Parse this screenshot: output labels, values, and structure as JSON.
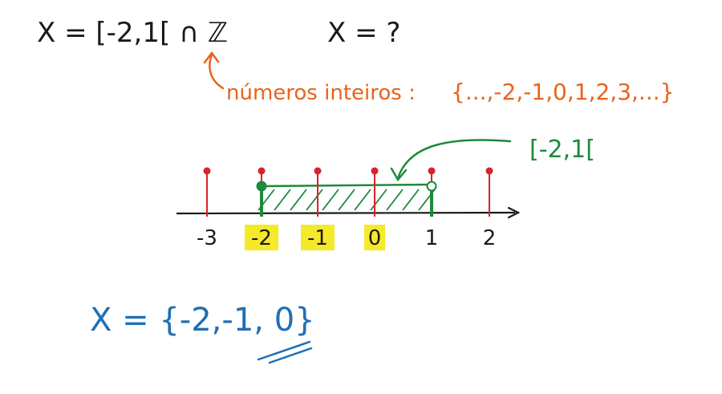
{
  "colors": {
    "ink": "#1a1a1a",
    "orange": "#e8641c",
    "green": "#1e8a3c",
    "red": "#d8232a",
    "blue": "#1f6fb5",
    "highlight": "#f4ea2a"
  },
  "line1": {
    "expr": "X = [-2,1[ ∩ ℤ",
    "question": "X = ?"
  },
  "note": {
    "label": "números inteiros :",
    "set": "{...,-2,-1,0,1,2,3,...}"
  },
  "interval_label": "[-2,1[",
  "number_line": {
    "ticks": [
      "-3",
      "-2",
      "-1",
      "0",
      "1",
      "2"
    ],
    "highlighted": [
      "-2",
      "-1",
      "0"
    ],
    "interval_start": "-2",
    "interval_end": "1",
    "start_closed": true,
    "end_closed": false
  },
  "answer": "X = {-2,-1, 0}"
}
